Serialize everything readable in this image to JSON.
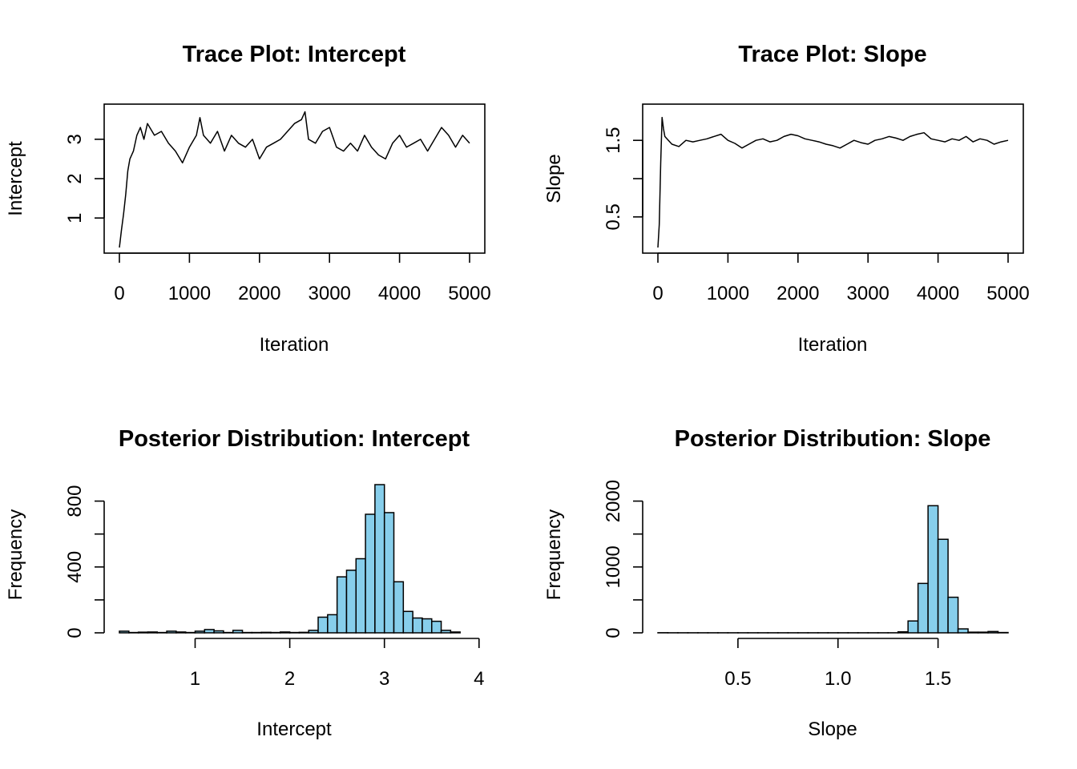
{
  "chart_data": [
    {
      "id": "trace_intercept",
      "type": "line",
      "title": "Trace Plot: Intercept",
      "xlabel": "Iteration",
      "ylabel": "Intercept",
      "xlim": [
        0,
        5000
      ],
      "ylim": [
        0.25,
        3.75
      ],
      "xticks": [
        0,
        1000,
        2000,
        3000,
        4000,
        5000
      ],
      "yticks": [
        1,
        2,
        3
      ],
      "frame": true,
      "x": [
        0,
        30,
        60,
        90,
        120,
        150,
        200,
        250,
        300,
        350,
        400,
        500,
        600,
        700,
        800,
        900,
        1000,
        1100,
        1150,
        1200,
        1300,
        1400,
        1500,
        1600,
        1700,
        1800,
        1900,
        2000,
        2100,
        2200,
        2300,
        2400,
        2500,
        2600,
        2650,
        2700,
        2800,
        2900,
        3000,
        3100,
        3200,
        3300,
        3400,
        3500,
        3600,
        3700,
        3800,
        3900,
        4000,
        4100,
        4200,
        4300,
        4400,
        4500,
        4600,
        4700,
        4800,
        4900,
        5000
      ],
      "y": [
        0.25,
        0.7,
        1.1,
        1.6,
        2.2,
        2.5,
        2.7,
        3.1,
        3.3,
        3.0,
        3.4,
        3.1,
        3.2,
        2.9,
        2.7,
        2.4,
        2.8,
        3.1,
        3.55,
        3.1,
        2.9,
        3.2,
        2.7,
        3.1,
        2.9,
        2.8,
        3.0,
        2.5,
        2.8,
        2.9,
        3.0,
        3.2,
        3.4,
        3.5,
        3.7,
        3.0,
        2.9,
        3.2,
        3.3,
        2.8,
        2.7,
        2.9,
        2.7,
        3.1,
        2.8,
        2.6,
        2.5,
        2.9,
        3.1,
        2.8,
        2.9,
        3.0,
        2.7,
        3.0,
        3.3,
        3.1,
        2.8,
        3.1,
        2.9
      ]
    },
    {
      "id": "trace_slope",
      "type": "line",
      "title": "Trace Plot: Slope",
      "xlabel": "Iteration",
      "ylabel": "Slope",
      "xlim": [
        0,
        5000
      ],
      "ylim": [
        0.1,
        1.9
      ],
      "xticks": [
        0,
        1000,
        2000,
        3000,
        4000,
        5000
      ],
      "yticks": [
        0.5,
        1,
        1.5
      ],
      "ytick_labels": [
        "0.5",
        "",
        "1.5"
      ],
      "frame": true,
      "x": [
        0,
        20,
        40,
        60,
        80,
        100,
        150,
        200,
        300,
        400,
        500,
        600,
        700,
        800,
        900,
        1000,
        1100,
        1200,
        1300,
        1400,
        1500,
        1600,
        1700,
        1800,
        1900,
        2000,
        2100,
        2200,
        2300,
        2400,
        2500,
        2600,
        2700,
        2800,
        2900,
        3000,
        3100,
        3200,
        3300,
        3400,
        3500,
        3600,
        3700,
        3800,
        3900,
        4000,
        4100,
        4200,
        4300,
        4400,
        4500,
        4600,
        4700,
        4800,
        4900,
        5000
      ],
      "y": [
        0.1,
        0.4,
        1.2,
        1.8,
        1.65,
        1.55,
        1.5,
        1.45,
        1.42,
        1.5,
        1.48,
        1.5,
        1.52,
        1.55,
        1.58,
        1.5,
        1.46,
        1.4,
        1.45,
        1.5,
        1.52,
        1.48,
        1.5,
        1.55,
        1.58,
        1.56,
        1.52,
        1.5,
        1.48,
        1.45,
        1.43,
        1.4,
        1.45,
        1.5,
        1.47,
        1.45,
        1.5,
        1.52,
        1.55,
        1.53,
        1.5,
        1.55,
        1.58,
        1.6,
        1.52,
        1.5,
        1.48,
        1.52,
        1.5,
        1.55,
        1.48,
        1.52,
        1.5,
        1.45,
        1.48,
        1.5
      ]
    },
    {
      "id": "hist_intercept",
      "type": "bar",
      "title": "Posterior Distribution: Intercept",
      "xlabel": "Intercept",
      "ylabel": "Frequency",
      "xlim": [
        0.2,
        3.9
      ],
      "ylim": [
        0,
        900
      ],
      "xticks": [
        1,
        2,
        3,
        4
      ],
      "xaxis_from": 1,
      "yticks": [
        0,
        200,
        400,
        600,
        800
      ],
      "ytick_labels": [
        "0",
        "",
        "400",
        "",
        "800"
      ],
      "bar_color": "#87ceeb",
      "bin_width": 0.1,
      "bin_starts": [
        0.2,
        0.3,
        0.4,
        0.5,
        0.6,
        0.7,
        0.8,
        0.9,
        1.0,
        1.1,
        1.2,
        1.3,
        1.4,
        1.5,
        1.6,
        1.7,
        1.8,
        1.9,
        2.0,
        2.1,
        2.2,
        2.3,
        2.4,
        2.5,
        2.6,
        2.7,
        2.8,
        2.9,
        3.0,
        3.1,
        3.2,
        3.3,
        3.4,
        3.5,
        3.6,
        3.7,
        3.8
      ],
      "values": [
        10,
        2,
        4,
        5,
        2,
        10,
        5,
        2,
        10,
        20,
        12,
        2,
        15,
        2,
        2,
        3,
        2,
        5,
        2,
        3,
        15,
        95,
        110,
        340,
        380,
        450,
        720,
        900,
        730,
        310,
        130,
        90,
        85,
        70,
        15,
        5,
        0
      ]
    },
    {
      "id": "hist_slope",
      "type": "bar",
      "title": "Posterior Distribution: Slope",
      "xlabel": "Slope",
      "ylabel": "Frequency",
      "xlim": [
        0.1,
        1.85
      ],
      "ylim": [
        0,
        2250
      ],
      "xticks": [
        0.5,
        1.0,
        1.5
      ],
      "xtick_labels": [
        "0.5",
        "1.0",
        "1.5"
      ],
      "xaxis_to": 1.5,
      "yticks": [
        0,
        500,
        1000,
        1500,
        2000
      ],
      "ytick_labels": [
        "0",
        "",
        "1000",
        "",
        "2000"
      ],
      "bar_color": "#87ceeb",
      "bin_width": 0.05,
      "bin_starts": [
        0.1,
        0.15,
        0.2,
        0.25,
        0.3,
        0.35,
        0.4,
        0.45,
        0.5,
        0.55,
        0.6,
        0.65,
        0.7,
        0.75,
        0.8,
        0.85,
        0.9,
        0.95,
        1.0,
        1.05,
        1.1,
        1.15,
        1.2,
        1.25,
        1.3,
        1.35,
        1.4,
        1.45,
        1.5,
        1.55,
        1.6,
        1.65,
        1.7,
        1.75,
        1.8
      ],
      "values": [
        2,
        1,
        1,
        1,
        1,
        1,
        1,
        1,
        1,
        1,
        1,
        1,
        1,
        1,
        1,
        1,
        1,
        1,
        1,
        1,
        1,
        1,
        1,
        1,
        15,
        180,
        750,
        1930,
        1420,
        540,
        60,
        10,
        10,
        20,
        5
      ]
    }
  ]
}
